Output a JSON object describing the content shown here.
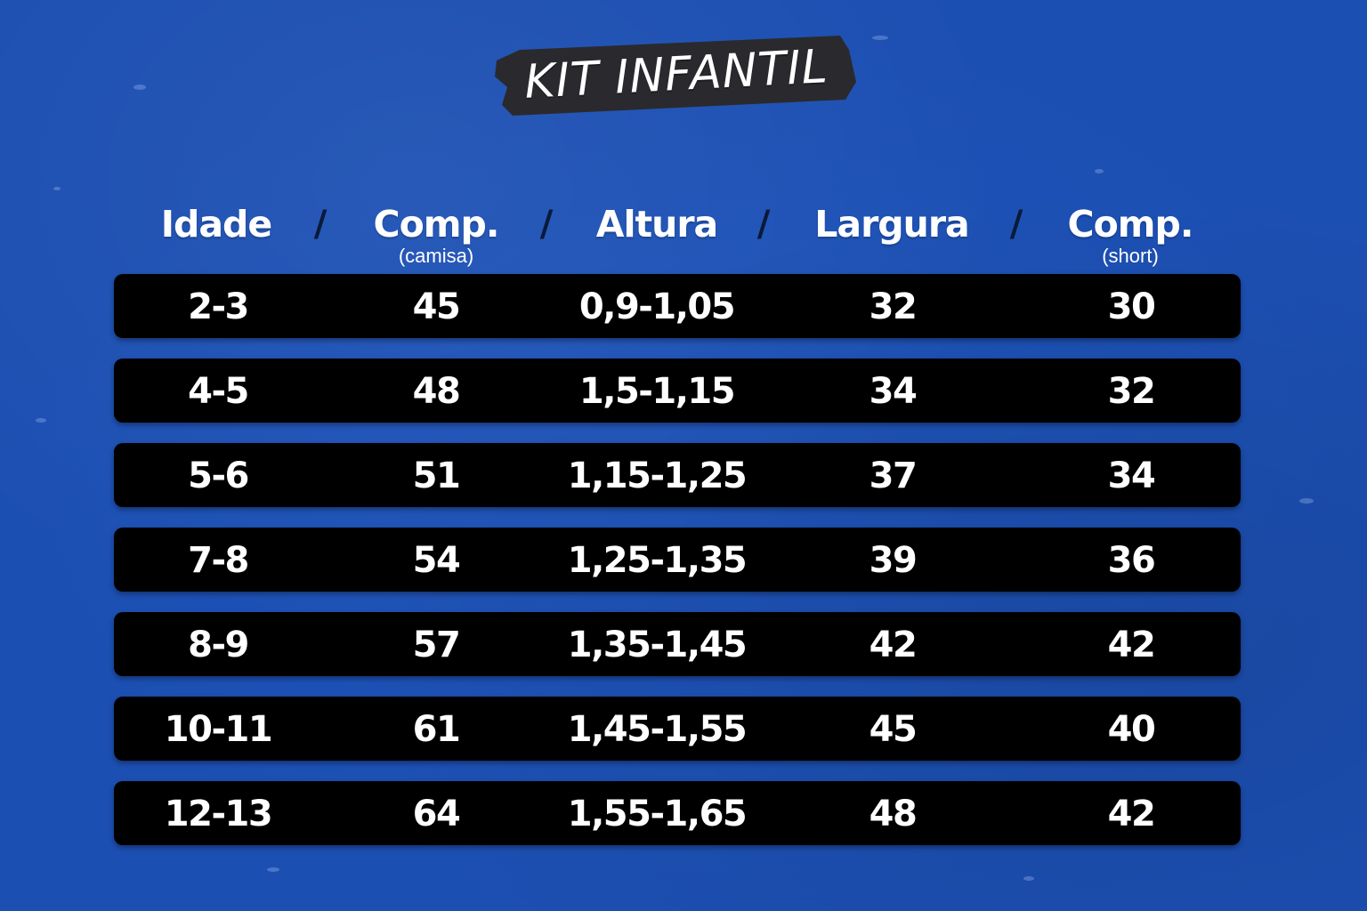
{
  "title": "KIT INFANTIL",
  "headers": [
    {
      "label": "Idade",
      "sub": ""
    },
    {
      "label": "Comp.",
      "sub": "(camisa)"
    },
    {
      "label": "Altura",
      "sub": ""
    },
    {
      "label": "Largura",
      "sub": ""
    },
    {
      "label": "Comp.",
      "sub": "(short)"
    }
  ],
  "separator": "/",
  "rows": [
    [
      "2-3",
      "45",
      "0,9-1,05",
      "32",
      "30"
    ],
    [
      "4-5",
      "48",
      "1,5-1,15",
      "34",
      "32"
    ],
    [
      "5-6",
      "51",
      "1,15-1,25",
      "37",
      "34"
    ],
    [
      "7-8",
      "54",
      "1,25-1,35",
      "39",
      "36"
    ],
    [
      "8-9",
      "57",
      "1,35-1,45",
      "42",
      "42"
    ],
    [
      "10-11",
      "61",
      "1,45-1,55",
      "45",
      "40"
    ],
    [
      "12-13",
      "64",
      "1,55-1,65",
      "48",
      "42"
    ]
  ],
  "colors": {
    "background": "#1c4fb2",
    "banner": "#2a2a2e",
    "row": "#000000",
    "text": "#ffffff"
  }
}
